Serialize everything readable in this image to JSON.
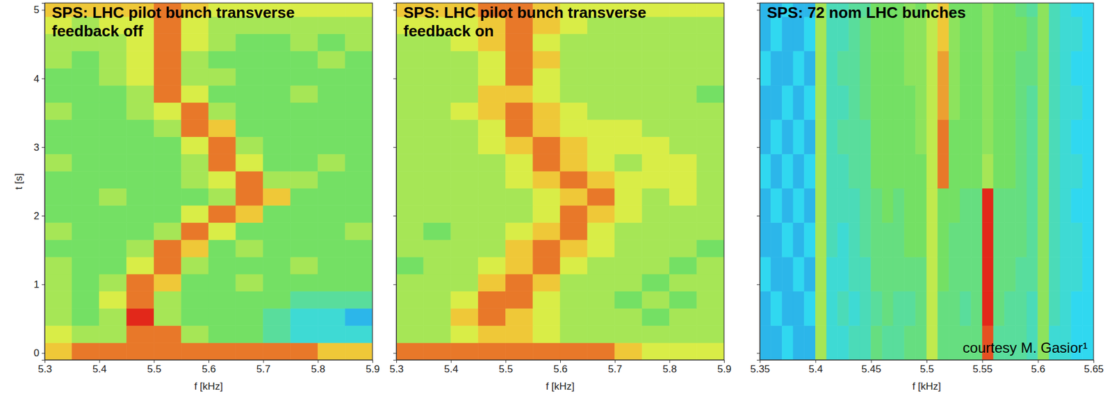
{
  "chart_data": [
    {
      "type": "heatmap",
      "title": "SPS: LHC pilot bunch transverse feedback off",
      "x_label": "f [kHz]",
      "y_label": "t [s]",
      "xlim": [
        5.3,
        5.9
      ],
      "ylim": [
        -0.1,
        5.1
      ],
      "xticks": [
        5.3,
        5.4,
        5.5,
        5.6,
        5.7,
        5.8,
        5.9
      ],
      "yticks": [
        0,
        1,
        2,
        3,
        4,
        5
      ],
      "tick_labels": true,
      "zlim": [
        0,
        10
      ],
      "x_bins": [
        5.3,
        5.35,
        5.4,
        5.45,
        5.5,
        5.55,
        5.6,
        5.65,
        5.7,
        5.75,
        5.8,
        5.85,
        5.9
      ],
      "y_bins": [
        -0.1,
        0.15,
        0.4,
        0.65,
        0.9,
        1.15,
        1.4,
        1.65,
        1.9,
        2.15,
        2.4,
        2.65,
        2.9,
        3.15,
        3.4,
        3.65,
        3.9,
        4.15,
        4.4,
        4.65,
        4.9,
        5.15
      ],
      "values": [
        [
          8,
          9,
          9,
          9,
          9,
          9,
          9,
          9,
          9,
          9,
          8,
          8
        ],
        [
          7,
          6,
          6,
          9,
          9,
          6,
          5,
          5,
          4,
          3,
          3,
          3
        ],
        [
          6,
          5,
          6,
          10,
          6,
          5,
          5,
          5,
          4,
          3,
          3,
          2
        ],
        [
          6,
          5,
          7,
          9,
          6,
          5,
          5,
          5,
          5,
          4,
          4,
          4
        ],
        [
          6,
          5,
          6,
          9,
          8,
          5,
          5,
          6,
          5,
          5,
          5,
          5
        ],
        [
          6,
          5,
          5,
          7,
          9,
          6,
          5,
          5,
          5,
          6,
          5,
          5
        ],
        [
          5,
          5,
          5,
          6,
          9,
          8,
          5,
          6,
          5,
          5,
          5,
          5
        ],
        [
          6,
          5,
          5,
          5,
          6,
          9,
          7,
          5,
          5,
          5,
          5,
          6
        ],
        [
          5,
          5,
          5,
          5,
          5,
          7,
          9,
          8,
          5,
          5,
          5,
          5
        ],
        [
          5,
          5,
          6,
          5,
          5,
          5,
          6,
          9,
          8,
          5,
          5,
          5
        ],
        [
          5,
          5,
          5,
          5,
          5,
          6,
          7,
          9,
          6,
          6,
          5,
          5
        ],
        [
          6,
          5,
          5,
          5,
          5,
          6,
          9,
          7,
          5,
          5,
          6,
          5
        ],
        [
          5,
          5,
          5,
          5,
          5,
          7,
          9,
          6,
          5,
          5,
          5,
          5
        ],
        [
          5,
          5,
          5,
          5,
          6,
          9,
          8,
          5,
          5,
          5,
          5,
          5
        ],
        [
          6,
          5,
          5,
          6,
          7,
          9,
          6,
          5,
          5,
          5,
          5,
          5
        ],
        [
          5,
          5,
          5,
          6,
          9,
          7,
          5,
          5,
          5,
          6,
          5,
          5
        ],
        [
          5,
          5,
          6,
          7,
          9,
          6,
          6,
          5,
          5,
          5,
          5,
          5
        ],
        [
          6,
          5,
          6,
          7,
          9,
          6,
          5,
          5,
          5,
          5,
          6,
          5
        ],
        [
          6,
          6,
          6,
          7,
          9,
          7,
          6,
          5,
          5,
          6,
          5,
          6
        ],
        [
          7,
          6,
          7,
          7,
          9,
          7,
          6,
          6,
          6,
          6,
          6,
          6
        ],
        [
          8,
          8,
          8,
          8,
          9,
          8,
          7,
          7,
          7,
          7,
          7,
          7
        ]
      ]
    },
    {
      "type": "heatmap",
      "title": "SPS: LHC pilot bunch transverse feedback on",
      "x_label": "f [kHz]",
      "xlim": [
        5.3,
        5.9
      ],
      "ylim": [
        -0.1,
        5.1
      ],
      "xticks": [
        5.3,
        5.4,
        5.5,
        5.6,
        5.7,
        5.8,
        5.9
      ],
      "yticks": [
        0,
        1,
        2,
        3,
        4,
        5
      ],
      "tick_labels": "x",
      "zlim": [
        0,
        10
      ],
      "x_bins": [
        5.3,
        5.35,
        5.4,
        5.45,
        5.5,
        5.55,
        5.6,
        5.65,
        5.7,
        5.75,
        5.8,
        5.85,
        5.9
      ],
      "y_bins": [
        -0.1,
        0.15,
        0.4,
        0.65,
        0.9,
        1.15,
        1.4,
        1.65,
        1.9,
        2.15,
        2.4,
        2.65,
        2.9,
        3.15,
        3.4,
        3.65,
        3.9,
        4.15,
        4.4,
        4.65,
        4.9,
        5.15
      ],
      "values": [
        [
          9,
          9,
          9,
          9,
          9,
          9,
          9,
          9,
          8,
          7,
          7,
          7
        ],
        [
          6,
          6,
          7,
          8,
          8,
          7,
          6,
          6,
          6,
          6,
          6,
          6
        ],
        [
          6,
          6,
          8,
          9,
          8,
          7,
          6,
          6,
          6,
          5,
          6,
          6
        ],
        [
          6,
          6,
          7,
          9,
          9,
          7,
          6,
          6,
          5,
          6,
          5,
          6
        ],
        [
          6,
          6,
          6,
          8,
          9,
          8,
          6,
          6,
          6,
          5,
          6,
          6
        ],
        [
          5,
          6,
          6,
          7,
          8,
          9,
          7,
          6,
          6,
          6,
          5,
          6
        ],
        [
          6,
          6,
          6,
          6,
          8,
          9,
          8,
          7,
          6,
          6,
          6,
          5
        ],
        [
          6,
          5,
          6,
          6,
          7,
          8,
          9,
          7,
          6,
          6,
          6,
          6
        ],
        [
          6,
          6,
          6,
          6,
          6,
          7,
          9,
          8,
          7,
          6,
          6,
          6
        ],
        [
          6,
          6,
          6,
          6,
          6,
          7,
          8,
          9,
          7,
          6,
          7,
          6
        ],
        [
          6,
          6,
          6,
          6,
          7,
          8,
          9,
          8,
          7,
          7,
          7,
          6
        ],
        [
          6,
          6,
          6,
          6,
          7,
          9,
          8,
          7,
          6,
          7,
          7,
          6
        ],
        [
          6,
          6,
          6,
          7,
          8,
          9,
          8,
          7,
          7,
          7,
          6,
          6
        ],
        [
          6,
          6,
          6,
          7,
          9,
          8,
          7,
          7,
          7,
          6,
          6,
          6
        ],
        [
          6,
          6,
          7,
          8,
          9,
          8,
          7,
          6,
          6,
          6,
          6,
          6
        ],
        [
          6,
          6,
          6,
          8,
          8,
          7,
          6,
          6,
          6,
          6,
          6,
          5
        ],
        [
          6,
          6,
          6,
          7,
          9,
          7,
          6,
          6,
          6,
          6,
          6,
          6
        ],
        [
          6,
          6,
          6,
          7,
          9,
          8,
          6,
          6,
          6,
          6,
          6,
          6
        ],
        [
          6,
          6,
          7,
          8,
          9,
          7,
          6,
          6,
          6,
          6,
          6,
          6
        ],
        [
          7,
          7,
          7,
          8,
          9,
          8,
          7,
          6,
          6,
          6,
          6,
          6
        ],
        [
          8,
          8,
          8,
          9,
          9,
          8,
          7,
          7,
          7,
          7,
          7,
          7
        ]
      ]
    },
    {
      "type": "heatmap",
      "title": "SPS: 72 nom LHC bunches",
      "x_label": "f [kHz]",
      "annotations": [
        "courtesy M. Gasior¹"
      ],
      "xlim": [
        5.35,
        5.65
      ],
      "ylim": [
        -0.1,
        5.1
      ],
      "xticks": [
        5.35,
        5.4,
        5.45,
        5.5,
        5.55,
        5.6,
        5.65
      ],
      "yticks": [
        0,
        1,
        2,
        3,
        4,
        5
      ],
      "tick_labels": "x",
      "zlim": [
        0,
        10
      ],
      "x_bins": [
        5.35,
        5.36,
        5.37,
        5.38,
        5.39,
        5.4,
        5.41,
        5.42,
        5.43,
        5.44,
        5.45,
        5.46,
        5.47,
        5.48,
        5.49,
        5.5,
        5.51,
        5.52,
        5.53,
        5.54,
        5.55,
        5.56,
        5.57,
        5.58,
        5.59,
        5.6,
        5.61,
        5.62,
        5.63,
        5.64,
        5.65
      ],
      "y_bins": [
        -0.1,
        0.4,
        0.9,
        1.4,
        1.9,
        2.4,
        2.9,
        3.4,
        3.9,
        4.4,
        4.9,
        5.4
      ],
      "values": [
        [
          2,
          2,
          2.5,
          2,
          2,
          6,
          3,
          3,
          3.5,
          3.5,
          4.5,
          4,
          4,
          4.5,
          4.5,
          6.5,
          4.5,
          4.5,
          4.5,
          4.5,
          9.5,
          4,
          4,
          4,
          3.5,
          5.5,
          3,
          3,
          2.5,
          2.5
        ],
        [
          2,
          2.5,
          2,
          2,
          2.5,
          6,
          3,
          3.5,
          3,
          3.5,
          4,
          4.5,
          4,
          4,
          4.5,
          6.5,
          4.5,
          4.5,
          4,
          4.5,
          10,
          4.5,
          4,
          4,
          3.5,
          5.5,
          3.5,
          3,
          2.5,
          2.5
        ],
        [
          2.5,
          2,
          2,
          2.5,
          2,
          6,
          3,
          3,
          3.5,
          3.5,
          4.5,
          4.5,
          4.5,
          4.5,
          4.5,
          6.5,
          5,
          4.5,
          4.5,
          4.5,
          10,
          4.5,
          4.5,
          4,
          4,
          5.5,
          3.5,
          3,
          3,
          2.5
        ],
        [
          2,
          2,
          2.5,
          2,
          2.5,
          6,
          3.5,
          3,
          3.5,
          4,
          4.5,
          4.5,
          4.5,
          5,
          5,
          6.5,
          5,
          4.5,
          4.5,
          4.5,
          10,
          4.5,
          4.5,
          4.5,
          4,
          5.5,
          3.5,
          3,
          3,
          2.5
        ],
        [
          2,
          2.5,
          2,
          2.5,
          2,
          6,
          3.5,
          3.5,
          3.5,
          4,
          4.5,
          5,
          4.5,
          5,
          5,
          6.5,
          5,
          5,
          4.5,
          4.5,
          10,
          4.5,
          4.5,
          4.5,
          4,
          5.5,
          3.5,
          3,
          2.5,
          2.5
        ],
        [
          2.5,
          2,
          2.5,
          2,
          2.5,
          6,
          3.5,
          3.5,
          4,
          4,
          5,
          5,
          5,
          5,
          5,
          6.5,
          9,
          5,
          5,
          5,
          6,
          5,
          5,
          4.5,
          4,
          5.5,
          3.5,
          3,
          3,
          2.5
        ],
        [
          2,
          2.5,
          2,
          2.5,
          2,
          6,
          3.5,
          4,
          4,
          4,
          5,
          5,
          5,
          5,
          5.5,
          6.5,
          9,
          5,
          5,
          5,
          5.5,
          5,
          5,
          4.5,
          4,
          5.5,
          3.5,
          3,
          2.5,
          2.5
        ],
        [
          2,
          2,
          2.5,
          2,
          2.5,
          6,
          3.5,
          3.5,
          4,
          4.5,
          5,
          5,
          5,
          5,
          5.5,
          6.5,
          8.5,
          5.5,
          5,
          5,
          5.5,
          5,
          5,
          4.5,
          4,
          5.5,
          3.5,
          3,
          3,
          2.5
        ],
        [
          2.5,
          2,
          2,
          2.5,
          2,
          6,
          3.5,
          4,
          4,
          4.5,
          5,
          5,
          5,
          5.5,
          5.5,
          6.5,
          8.5,
          5.5,
          5,
          5,
          5.5,
          5,
          5,
          4.5,
          4.5,
          5.5,
          3.5,
          3,
          2.5,
          2.5
        ],
        [
          2,
          2.5,
          2,
          2,
          2.5,
          6,
          3.5,
          3.5,
          4,
          4.5,
          5,
          5,
          5,
          5.5,
          5.5,
          6.5,
          8,
          5.5,
          5,
          5,
          5.5,
          5,
          5,
          5,
          4.5,
          5.5,
          3.5,
          3,
          3,
          2.5
        ],
        [
          2,
          2,
          2.5,
          2,
          2,
          6,
          3.5,
          3.5,
          4,
          4,
          5,
          5,
          5,
          5.5,
          5,
          6.5,
          8,
          5,
          5,
          5,
          5.5,
          5,
          5,
          4.5,
          4,
          5.5,
          3.5,
          3,
          2.5,
          2.5
        ]
      ]
    }
  ]
}
